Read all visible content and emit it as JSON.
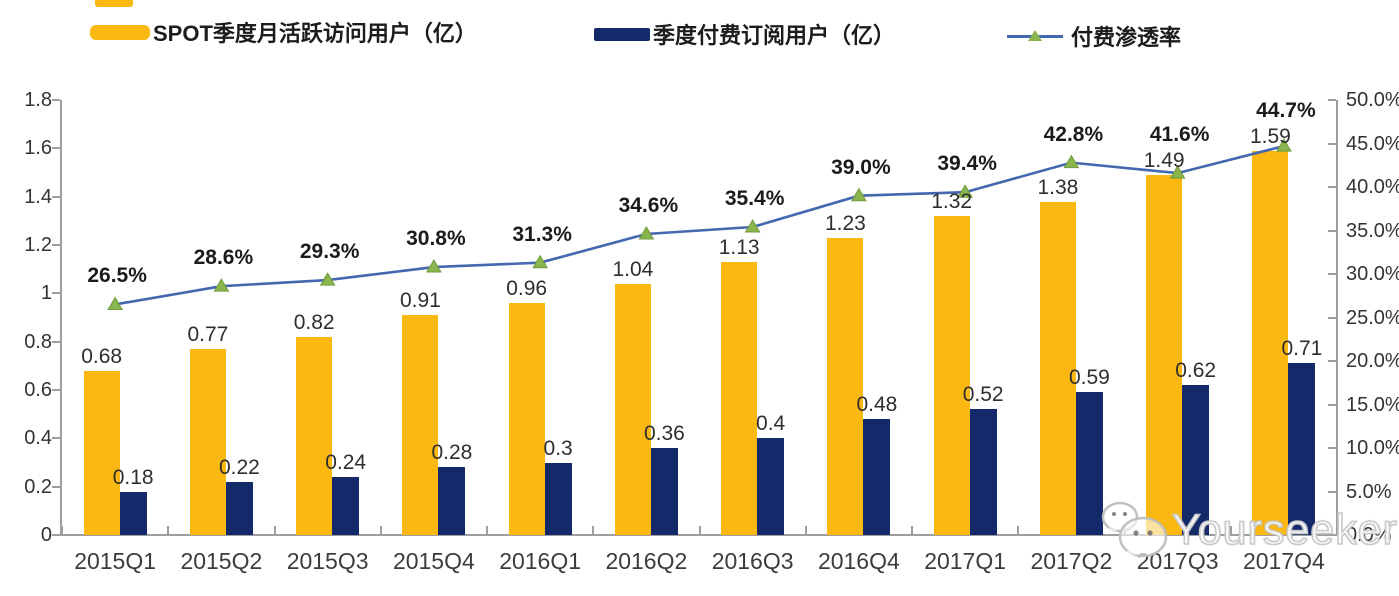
{
  "page": {
    "background": "#FFFFFF"
  },
  "legend": {
    "items": [
      {
        "label": "SPOT季度月活跃访问用户（亿）",
        "swatch": "yellow-bar-swatch",
        "color": "#FBB811"
      },
      {
        "label": "季度付费订阅用户（亿）",
        "swatch": "navy-bar-swatch",
        "color": "#13296A"
      },
      {
        "label": "付费渗透率",
        "swatch": "line-marker-swatch",
        "line_color": "#4368B0",
        "marker_color": "#8AB54E"
      }
    ]
  },
  "chart_data": {
    "type": "bar",
    "subtype": "combo-bar-line",
    "title": "",
    "categories": [
      "2015Q1",
      "2015Q2",
      "2015Q3",
      "2015Q4",
      "2016Q1",
      "2016Q2",
      "2016Q3",
      "2016Q4",
      "2017Q1",
      "2017Q2",
      "2017Q3",
      "2017Q4"
    ],
    "series": [
      {
        "name": "SPOT季度月活跃访问用户（亿）",
        "type": "bar",
        "axis": "left",
        "color": "#FBB811",
        "values": [
          0.68,
          0.77,
          0.82,
          0.91,
          0.96,
          1.04,
          1.13,
          1.23,
          1.32,
          1.38,
          1.49,
          1.59
        ],
        "labels": [
          "0.68",
          "0.77",
          "0.82",
          "0.91",
          "0.96",
          "1.04",
          "1.13",
          "1.23",
          "1.32",
          "1.38",
          "1.49",
          "1.59"
        ]
      },
      {
        "name": "季度付费订阅用户（亿）",
        "type": "bar",
        "axis": "left",
        "color": "#13296A",
        "values": [
          0.18,
          0.22,
          0.24,
          0.28,
          0.3,
          0.36,
          0.4,
          0.48,
          0.52,
          0.59,
          0.62,
          0.71
        ],
        "labels": [
          "0.18",
          "0.22",
          "0.24",
          "0.28",
          "0.3",
          "0.36",
          "0.4",
          "0.48",
          "0.52",
          "0.59",
          "0.62",
          "0.71"
        ]
      },
      {
        "name": "付费渗透率",
        "type": "line",
        "axis": "right",
        "color": "#4368B0",
        "marker": "triangle",
        "marker_color": "#8AB54E",
        "marker_edge_color": "#6F9C3C",
        "values": [
          26.5,
          28.6,
          29.3,
          30.8,
          31.3,
          34.6,
          35.4,
          39.0,
          39.4,
          42.8,
          41.6,
          44.7
        ],
        "labels": [
          "26.5%",
          "28.6%",
          "29.3%",
          "30.8%",
          "31.3%",
          "34.6%",
          "35.4%",
          "39.0%",
          "39.4%",
          "42.8%",
          "41.6%",
          "44.7%"
        ]
      }
    ],
    "left_axis": {
      "min": 0,
      "max": 1.8,
      "tick_labels": [
        "0",
        "0.2",
        "0.4",
        "0.6",
        "0.8",
        "1",
        "1.2",
        "1.4",
        "1.6",
        "1.8"
      ]
    },
    "right_axis": {
      "min": 0,
      "max": 50,
      "tick_labels": [
        "0.0%",
        "5.0%",
        "10.0%",
        "15.0%",
        "20.0%",
        "25.0%",
        "30.0%",
        "35.0%",
        "40.0%",
        "45.0%",
        "50.0%"
      ]
    },
    "grid": false,
    "legend_position": "top",
    "axis_color": "#9E9E9E"
  },
  "watermark": {
    "text": "Yourseeker",
    "icon": "wechat-bubbles-icon"
  }
}
